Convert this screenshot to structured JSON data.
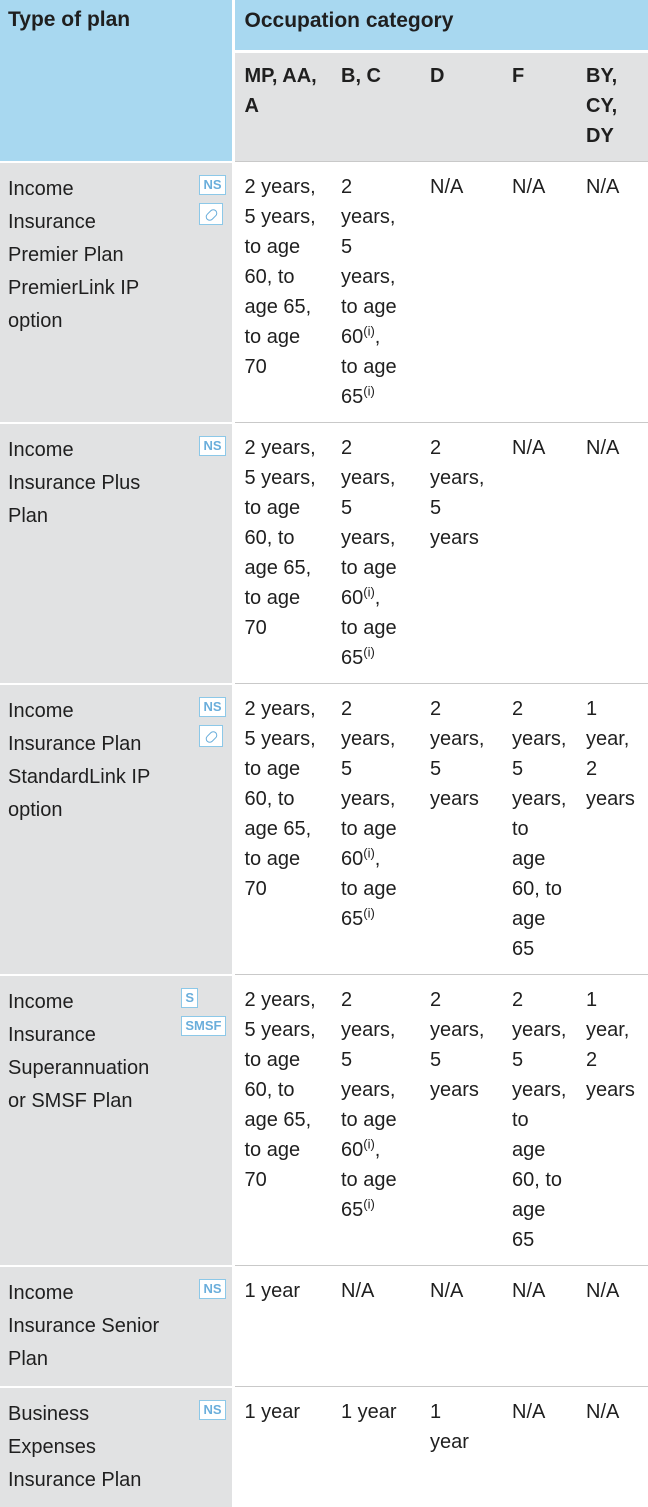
{
  "header": {
    "type_of_plan": "Type of plan",
    "occupation_category": "Occupation category",
    "categories": [
      "MP, AA,\nA",
      "B, C",
      "D",
      "F",
      "BY,\nCY,\nDY"
    ]
  },
  "rows": [
    {
      "plan": "Income Insurance Premier Plan PremierLink IP option",
      "tags": [
        "NS",
        "link"
      ],
      "values": [
        {
          "text": "2 years,\n5 years,\nto age\n60, to\nage 65,\nto age\n70"
        },
        {
          "segments": [
            "2\nyears,\n5\nyears,\nto age\n60",
            "(i)",
            ",\nto age\n65",
            "(i)"
          ]
        },
        {
          "text": "N/A"
        },
        {
          "text": "N/A"
        },
        {
          "text": "N/A"
        }
      ]
    },
    {
      "plan": "Income Insurance Plus Plan",
      "tags": [
        "NS"
      ],
      "values": [
        {
          "text": "2 years,\n5 years,\nto age\n60, to\nage 65,\nto age\n70"
        },
        {
          "segments": [
            "2\nyears,\n5\nyears,\nto age\n60",
            "(i)",
            ",\nto age\n65",
            "(i)"
          ]
        },
        {
          "text": "2\nyears,\n5\nyears"
        },
        {
          "text": "N/A"
        },
        {
          "text": "N/A"
        }
      ]
    },
    {
      "plan": "Income Insurance Plan StandardLink IP option",
      "tags": [
        "NS",
        "link"
      ],
      "values": [
        {
          "text": "2 years,\n5 years,\nto age\n60, to\nage 65,\nto age\n70"
        },
        {
          "segments": [
            "2\nyears,\n5\nyears,\nto age\n60",
            "(i)",
            ",\nto age\n65",
            "(i)"
          ]
        },
        {
          "text": "2\nyears,\n5\nyears"
        },
        {
          "text": "2\nyears,\n5\nyears,\nto\nage\n60, to\nage\n65"
        },
        {
          "text": "1\nyear,\n2\nyears"
        }
      ]
    },
    {
      "plan": "Income Insurance Superannuation or SMSF Plan",
      "tags": [
        "S",
        "SMSF"
      ],
      "values": [
        {
          "text": "2 years,\n5 years,\nto age\n60, to\nage 65,\nto age\n70"
        },
        {
          "segments": [
            "2\nyears,\n5\nyears,\nto age\n60",
            "(i)",
            ",\nto age\n65",
            "(i)"
          ]
        },
        {
          "text": "2\nyears,\n5\nyears"
        },
        {
          "text": "2\nyears,\n5\nyears,\nto\nage\n60, to\nage\n65"
        },
        {
          "text": "1\nyear,\n2\nyears"
        }
      ]
    },
    {
      "plan": "Income Insurance Senior Plan",
      "tags": [
        "NS"
      ],
      "values": [
        {
          "text": "1 year"
        },
        {
          "text": "N/A"
        },
        {
          "text": "N/A"
        },
        {
          "text": "N/A"
        },
        {
          "text": "N/A"
        }
      ]
    },
    {
      "plan": "Business Expenses Insurance Plan",
      "tags": [
        "NS"
      ],
      "values": [
        {
          "text": "1 year"
        },
        {
          "text": "1 year"
        },
        {
          "text": "1\nyear"
        },
        {
          "text": "N/A"
        },
        {
          "text": "N/A"
        }
      ]
    }
  ]
}
